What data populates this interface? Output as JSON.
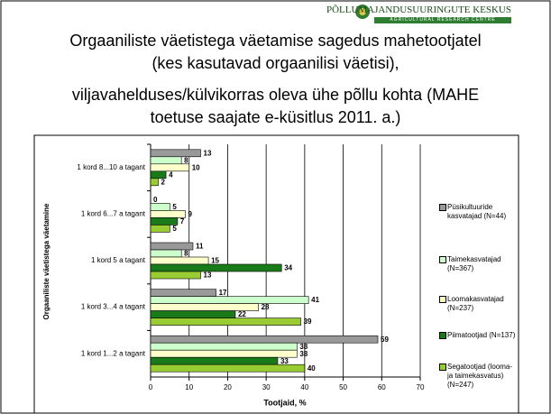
{
  "header": {
    "organization": "PÕLLUMAJANDUSUURINGUTE KESKUS",
    "organization_en": "AGRICULTURAL RESEARCH CENTRE"
  },
  "chart_data": {
    "type": "hbar",
    "title": "Orgaaniliste väetistega väetamise sagedus mahetootjatel (kes kasutavad orgaanilisi väetisi),",
    "subtitle": "viljavahelduses/külvikorras oleva ühe põllu kohta  (MAHE toetuse saajate e-küsitlus 2011. a.)",
    "x_label": "Tootjaid, %",
    "y_label": "Orgaaniliste väetistega väetamine",
    "categories": [
      "1 kord 8...10 a tagant",
      "1 kord 6...7 a tagant",
      "1 kord 5 a tagant",
      "1 kord 3...4 a tagant",
      "1 kord 1...2 a tagant"
    ],
    "series": [
      {
        "name": "Püsikultuuride kasvatajad (N=44)",
        "color": "#999999",
        "values": [
          13,
          0,
          11,
          17,
          59
        ]
      },
      {
        "name": "Taimekasvatajad (N=367)",
        "color": "#ccffcc",
        "values": [
          8,
          5,
          8,
          41,
          38
        ]
      },
      {
        "name": "Loomakasvatajad (N=237)",
        "color": "#ffffcc",
        "values": [
          10,
          9,
          15,
          28,
          38
        ]
      },
      {
        "name": "Piimatootjad (N=137)",
        "color": "#1a7a1a",
        "values": [
          4,
          7,
          34,
          22,
          33
        ]
      },
      {
        "name": "Segatootjad (looma- ja taimekasvatus) (N=247)",
        "color": "#99cc33",
        "values": [
          2,
          5,
          13,
          39,
          40
        ]
      }
    ],
    "xlim": [
      0,
      70
    ],
    "xticks": [
      0,
      10,
      20,
      30,
      40,
      50,
      60,
      70
    ],
    "grid": true
  }
}
